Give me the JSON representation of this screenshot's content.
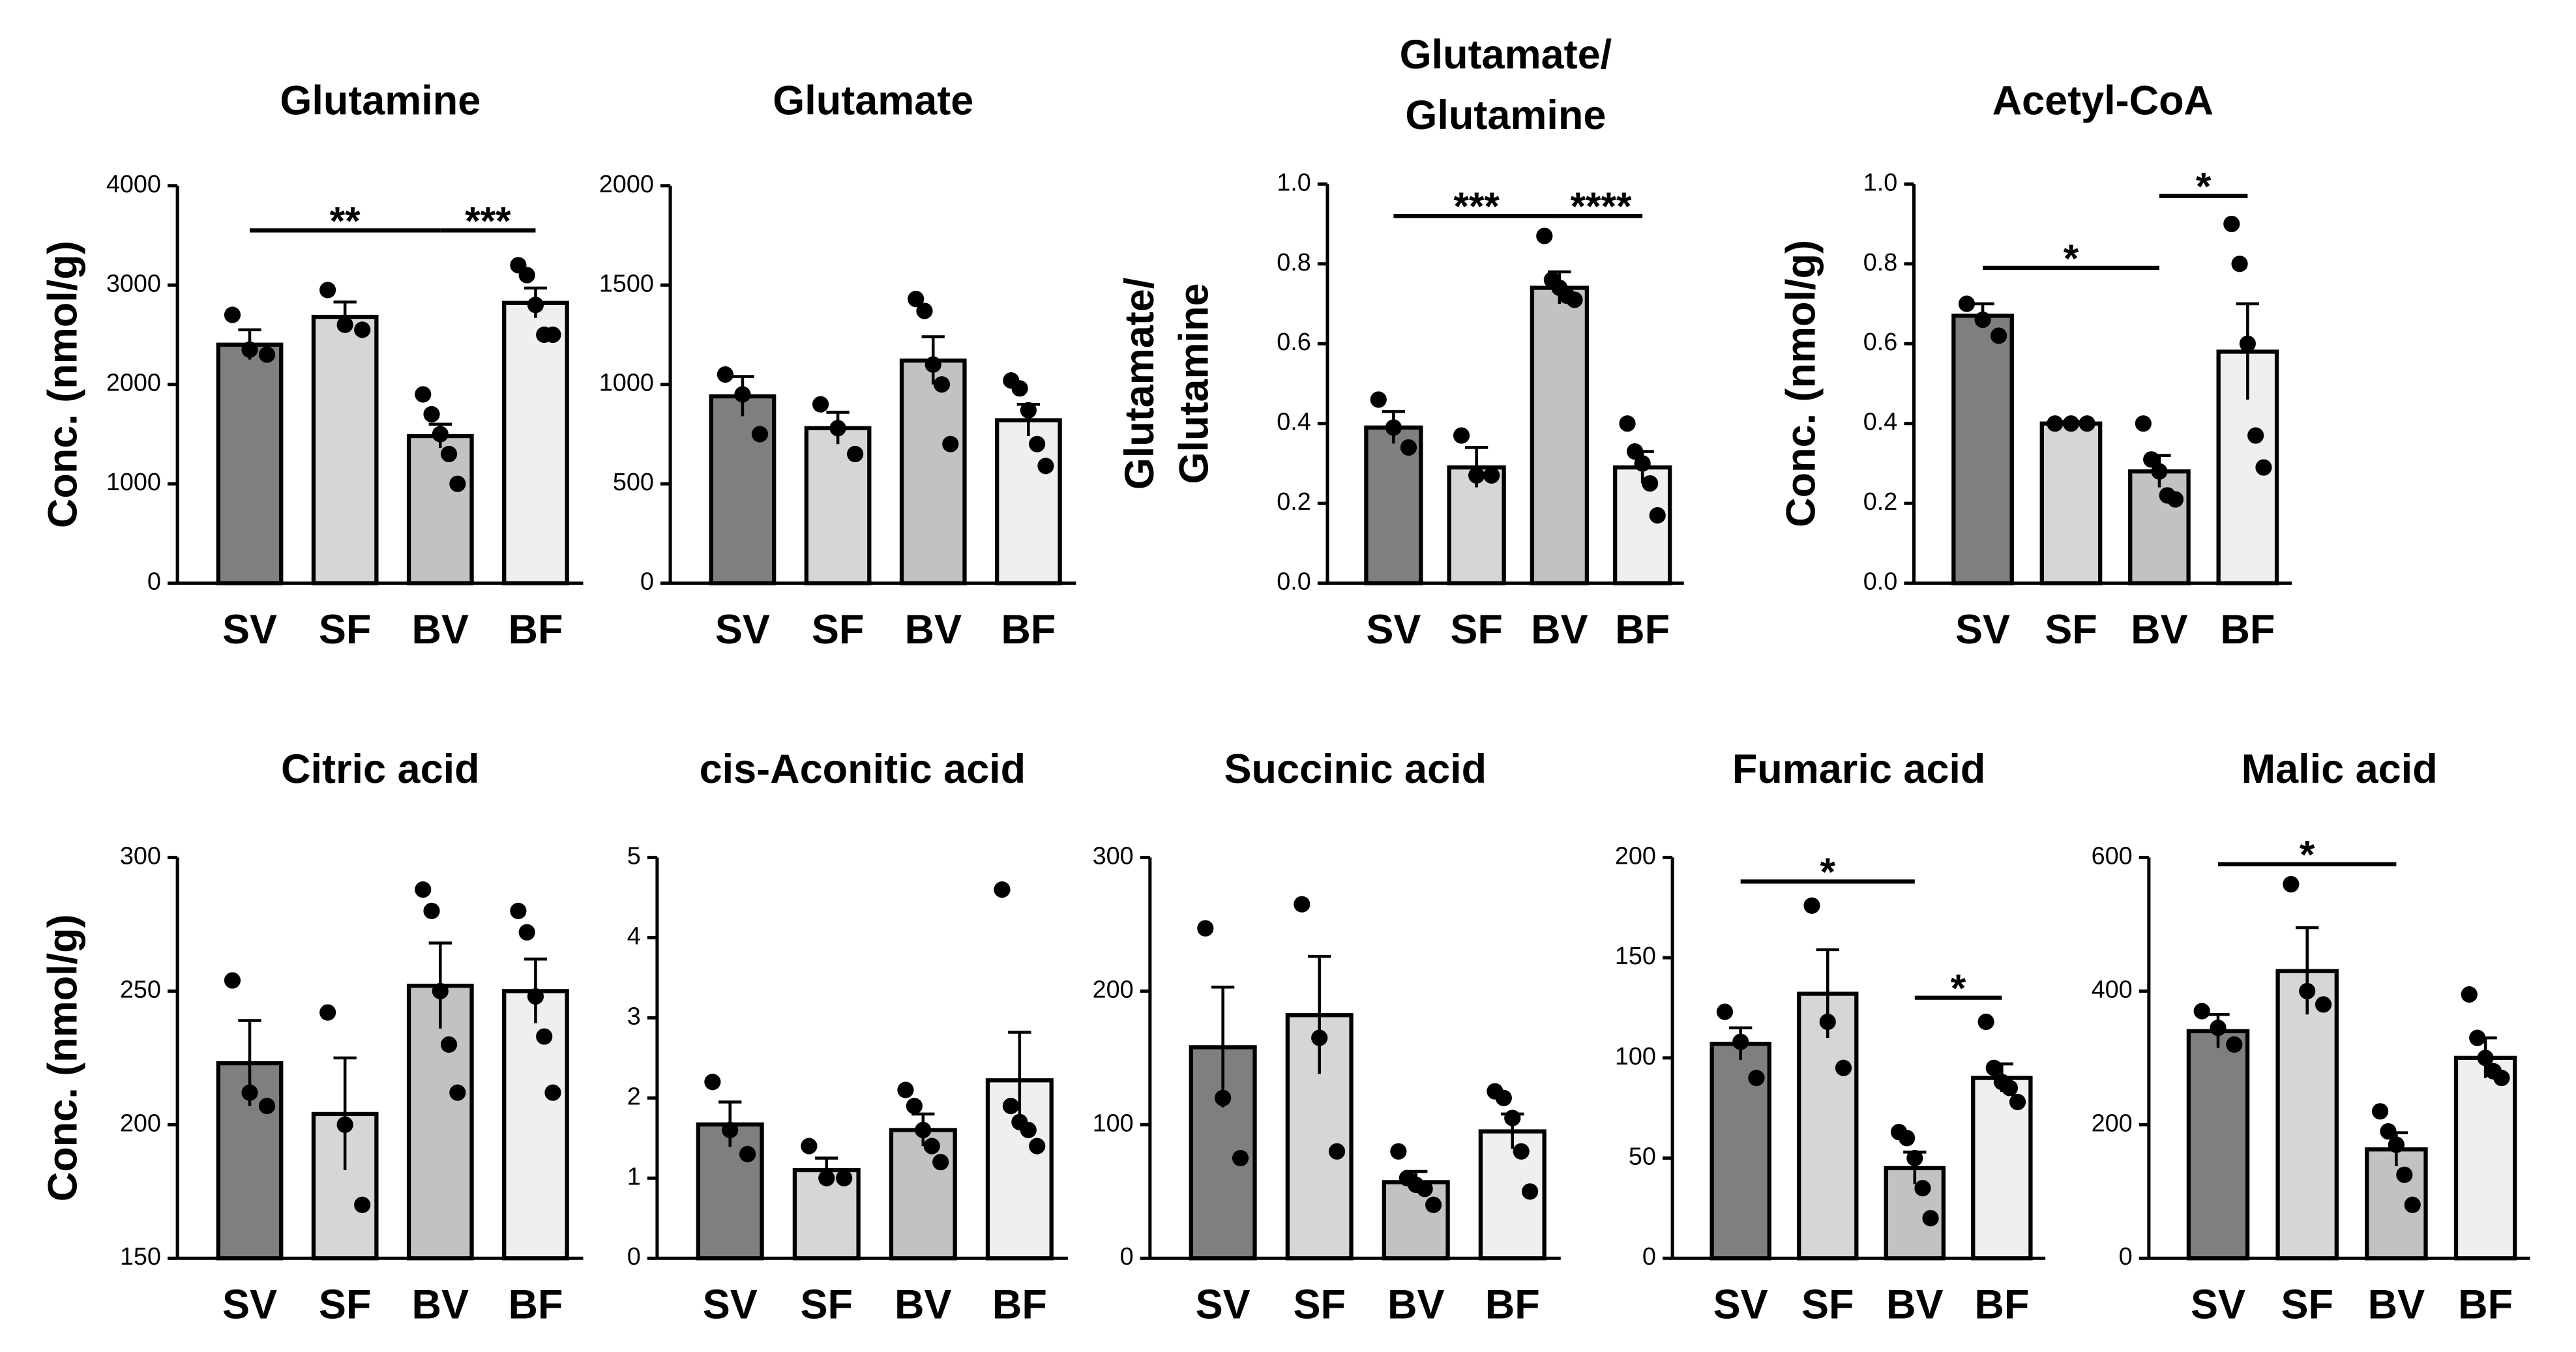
{
  "chart_data": [
    {
      "type": "bar",
      "title": [
        "Glutamine"
      ],
      "ylabel": [
        "Conc. (nmol/g)"
      ],
      "categories": [
        "SV",
        "SF",
        "BV",
        "BF"
      ],
      "colors": [
        "#7f7f7f",
        "#d6d6d6",
        "#c2c2c2",
        "#efefef"
      ],
      "values": [
        2400,
        2680,
        1480,
        2820
      ],
      "errors": [
        150,
        150,
        120,
        150
      ],
      "points": [
        [
          2700,
          2350,
          2300
        ],
        [
          2950,
          2600,
          2550
        ],
        [
          1900,
          1700,
          1500,
          1300,
          1000
        ],
        [
          3200,
          3100,
          2800,
          2500,
          2500
        ]
      ],
      "ylim": [
        0,
        4000
      ],
      "yticks": [
        0,
        1000,
        2000,
        3000,
        4000
      ],
      "significance": [
        {
          "x": [
            0,
            2
          ],
          "y": 3550,
          "label": "**"
        },
        {
          "x": [
            2,
            3
          ],
          "y": 3550,
          "label": "***"
        }
      ]
    },
    {
      "type": "bar",
      "title": [
        "Glutamate"
      ],
      "categories": [
        "SV",
        "SF",
        "BV",
        "BF"
      ],
      "colors": [
        "#7f7f7f",
        "#d6d6d6",
        "#c2c2c2",
        "#efefef"
      ],
      "values": [
        940,
        780,
        1120,
        820
      ],
      "errors": [
        100,
        80,
        120,
        80
      ],
      "points": [
        [
          1050,
          950,
          750
        ],
        [
          900,
          780,
          650
        ],
        [
          1430,
          1370,
          1100,
          1000,
          700
        ],
        [
          1020,
          980,
          870,
          700,
          590
        ]
      ],
      "ylim": [
        0,
        2000
      ],
      "yticks": [
        0,
        500,
        1000,
        1500,
        2000
      ]
    },
    {
      "type": "bar",
      "title": [
        "Glutamate/",
        "Glutamine"
      ],
      "ylabel": [
        "Glutamate/",
        "Glutamine"
      ],
      "categories": [
        "SV",
        "SF",
        "BV",
        "BF"
      ],
      "colors": [
        "#7f7f7f",
        "#d6d6d6",
        "#c2c2c2",
        "#efefef"
      ],
      "values": [
        0.39,
        0.29,
        0.74,
        0.29
      ],
      "errors": [
        0.04,
        0.05,
        0.04,
        0.04
      ],
      "points": [
        [
          0.46,
          0.39,
          0.34
        ],
        [
          0.37,
          0.27,
          0.27
        ],
        [
          0.87,
          0.76,
          0.74,
          0.72,
          0.71
        ],
        [
          0.4,
          0.33,
          0.3,
          0.25,
          0.17
        ]
      ],
      "ylim": [
        0,
        1.0
      ],
      "yticks": [
        {
          "value": 0,
          "label": "0.0"
        },
        0.2,
        0.4,
        0.6,
        0.8,
        {
          "value": 1,
          "label": "1.0"
        }
      ],
      "significance": [
        {
          "x": [
            0,
            2
          ],
          "y": 0.92,
          "label": "***"
        },
        {
          "x": [
            2,
            3
          ],
          "y": 0.92,
          "label": "****"
        }
      ]
    },
    {
      "type": "bar",
      "title": [
        "Acetyl-CoA"
      ],
      "ylabel": [
        "Conc. (nmol/g)"
      ],
      "categories": [
        "SV",
        "SF",
        "BV",
        "BF"
      ],
      "colors": [
        "#7f7f7f",
        "#d6d6d6",
        "#c2c2c2",
        "#efefef"
      ],
      "values": [
        0.67,
        0.4,
        0.28,
        0.58
      ],
      "errors": [
        0.03,
        0.005,
        0.04,
        0.12
      ],
      "points": [
        [
          0.7,
          0.66,
          0.62
        ],
        [
          0.4,
          0.4,
          0.4
        ],
        [
          0.4,
          0.31,
          0.28,
          0.22,
          0.21
        ],
        [
          0.9,
          0.8,
          0.6,
          0.37,
          0.29
        ]
      ],
      "ylim": [
        0,
        1.0
      ],
      "yticks": [
        {
          "value": 0,
          "label": "0.0"
        },
        0.2,
        0.4,
        0.6,
        0.8,
        {
          "value": 1,
          "label": "1.0"
        }
      ],
      "significance": [
        {
          "x": [
            0,
            2
          ],
          "y": 0.79,
          "label": "*"
        },
        {
          "x": [
            2,
            3
          ],
          "y": 0.97,
          "label": "*"
        }
      ]
    },
    {
      "type": "bar",
      "title": [
        "Citric acid"
      ],
      "ylabel": [
        "Conc. (nmol/g)"
      ],
      "categories": [
        "SV",
        "SF",
        "BV",
        "BF"
      ],
      "colors": [
        "#7f7f7f",
        "#d6d6d6",
        "#c2c2c2",
        "#efefef"
      ],
      "values": [
        223,
        204,
        252,
        250
      ],
      "errors": [
        16,
        21,
        16,
        12
      ],
      "points": [
        [
          254,
          212,
          207
        ],
        [
          242,
          200,
          170
        ],
        [
          288,
          280,
          250,
          230,
          212
        ],
        [
          280,
          272,
          248,
          233,
          212
        ]
      ],
      "ylim": [
        150,
        300
      ],
      "yticks": [
        150,
        200,
        250,
        300
      ]
    },
    {
      "type": "bar",
      "title": [
        "cis-Aconitic acid"
      ],
      "categories": [
        "SV",
        "SF",
        "BV",
        "BF"
      ],
      "colors": [
        "#7f7f7f",
        "#d6d6d6",
        "#c2c2c2",
        "#efefef"
      ],
      "values": [
        1.67,
        1.1,
        1.6,
        2.22
      ],
      "errors": [
        0.28,
        0.15,
        0.2,
        0.6
      ],
      "points": [
        [
          2.2,
          1.6,
          1.3
        ],
        [
          1.4,
          1.0,
          1.0
        ],
        [
          2.1,
          1.9,
          1.6,
          1.4,
          1.2
        ],
        [
          4.6,
          1.9,
          1.7,
          1.6,
          1.4
        ]
      ],
      "ylim": [
        0,
        5
      ],
      "yticks": [
        0,
        1,
        2,
        3,
        4,
        5
      ]
    },
    {
      "type": "bar",
      "title": [
        "Succinic acid"
      ],
      "categories": [
        "SV",
        "SF",
        "BV",
        "BF"
      ],
      "colors": [
        "#7f7f7f",
        "#d6d6d6",
        "#c2c2c2",
        "#efefef"
      ],
      "values": [
        158,
        182,
        57,
        95
      ],
      "errors": [
        45,
        44,
        8,
        13
      ],
      "points": [
        [
          247,
          120,
          75
        ],
        [
          265,
          165,
          80
        ],
        [
          80,
          60,
          55,
          52,
          40
        ],
        [
          125,
          120,
          105,
          80,
          50
        ]
      ],
      "ylim": [
        0,
        300
      ],
      "yticks": [
        0,
        100,
        200,
        300
      ]
    },
    {
      "type": "bar",
      "title": [
        "Fumaric acid"
      ],
      "categories": [
        "SV",
        "SF",
        "BV",
        "BF"
      ],
      "colors": [
        "#7f7f7f",
        "#d6d6d6",
        "#c2c2c2",
        "#efefef"
      ],
      "values": [
        107,
        132,
        45,
        90
      ],
      "errors": [
        8,
        22,
        8,
        7
      ],
      "points": [
        [
          123,
          108,
          90
        ],
        [
          176,
          118,
          95
        ],
        [
          63,
          60,
          50,
          35,
          20
        ],
        [
          118,
          95,
          88,
          85,
          78
        ]
      ],
      "ylim": [
        0,
        200
      ],
      "yticks": [
        0,
        50,
        100,
        150,
        200
      ],
      "significance": [
        {
          "x": [
            0,
            2
          ],
          "y": 188,
          "label": "*"
        },
        {
          "x": [
            2,
            3
          ],
          "y": 130,
          "label": "*"
        }
      ]
    },
    {
      "type": "bar",
      "title": [
        "Malic acid"
      ],
      "categories": [
        "SV",
        "SF",
        "BV",
        "BF"
      ],
      "colors": [
        "#7f7f7f",
        "#d6d6d6",
        "#c2c2c2",
        "#efefef"
      ],
      "values": [
        340,
        430,
        163,
        300
      ],
      "errors": [
        25,
        65,
        25,
        30
      ],
      "points": [
        [
          370,
          345,
          320
        ],
        [
          560,
          400,
          380
        ],
        [
          220,
          190,
          170,
          125,
          80
        ],
        [
          395,
          330,
          300,
          280,
          270
        ]
      ],
      "ylim": [
        0,
        600
      ],
      "yticks": [
        0,
        200,
        400,
        600
      ],
      "significance": [
        {
          "x": [
            0,
            2
          ],
          "y": 590,
          "label": "*"
        }
      ]
    }
  ]
}
